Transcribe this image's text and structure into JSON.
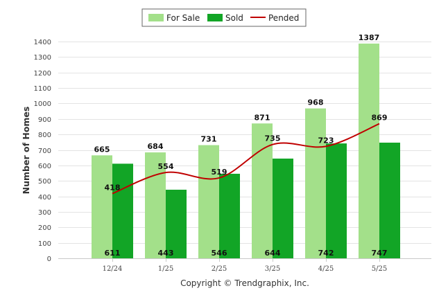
{
  "chart_data": {
    "type": "bar",
    "categories": [
      "12/24",
      "1/25",
      "2/25",
      "3/25",
      "4/25",
      "5/25"
    ],
    "series": [
      {
        "name": "For Sale",
        "type": "bar",
        "color": "#a3e08a",
        "values": [
          665,
          684,
          731,
          871,
          968,
          1387
        ]
      },
      {
        "name": "Sold",
        "type": "bar",
        "color": "#12a526",
        "values": [
          611,
          443,
          546,
          644,
          742,
          747
        ]
      },
      {
        "name": "Pended",
        "type": "line",
        "color": "#c00000",
        "values": [
          418,
          554,
          519,
          735,
          723,
          869
        ]
      }
    ],
    "title": "",
    "xlabel": "",
    "ylabel": "Number of Homes",
    "ylim": [
      0,
      1400
    ],
    "yticks": [
      0,
      100,
      200,
      300,
      400,
      500,
      600,
      700,
      800,
      900,
      1000,
      1100,
      1200,
      1300,
      1400
    ],
    "grid": true,
    "legend_position": "top-center",
    "footer": "Copyright © Trendgraphix, Inc."
  }
}
